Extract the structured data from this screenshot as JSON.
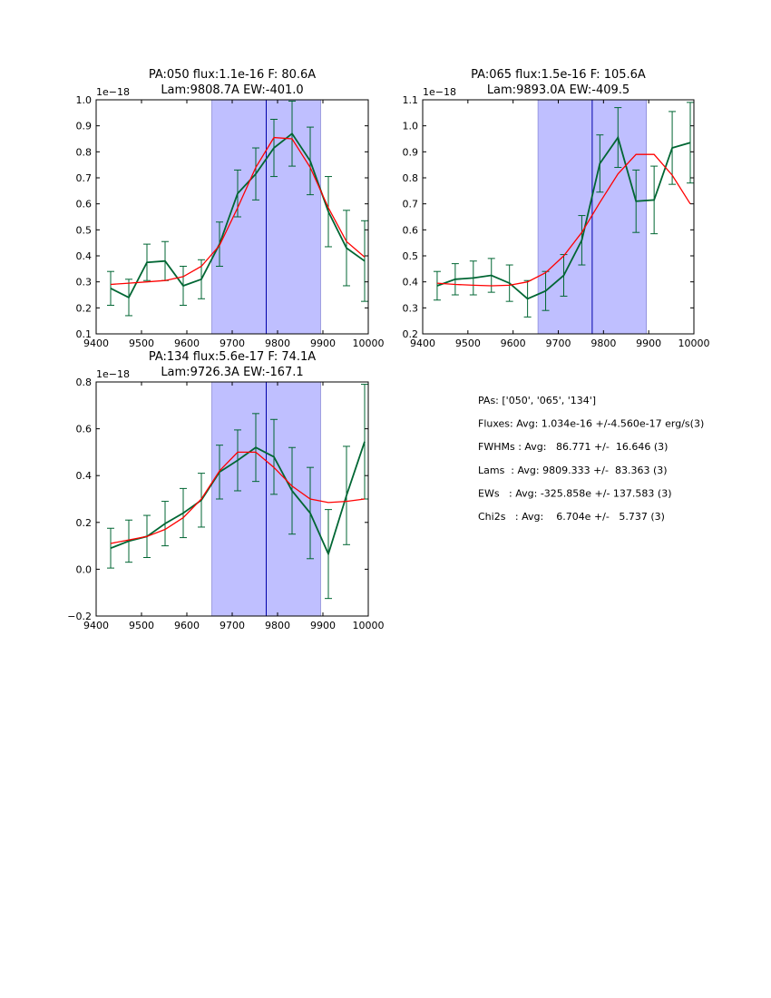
{
  "chart_data": [
    {
      "type": "line",
      "title_line1": "PA:050 flux:1.1e-16 F: 80.6A",
      "title_line2": "Lam:9808.7A EW:-401.0",
      "offset_label": "1e−18",
      "xlim": [
        9400,
        10000
      ],
      "ylim": [
        0.1,
        1.0
      ],
      "xticks": [
        9400,
        9500,
        9600,
        9700,
        9800,
        9900,
        10000
      ],
      "yticks": [
        0.1,
        0.2,
        0.3,
        0.4,
        0.5,
        0.6,
        0.7,
        0.8,
        0.9,
        1.0
      ],
      "ytick_labels": [
        "0.1",
        "0.2",
        "0.3",
        "0.4",
        "0.5",
        "0.6",
        "0.7",
        "0.8",
        "0.9",
        "1.0"
      ],
      "band": [
        9655,
        9895
      ],
      "center_line": 9775,
      "series": [
        {
          "name": "data",
          "color": "#006633",
          "x": [
            9432,
            9472,
            9512,
            9552,
            9592,
            9632,
            9672,
            9712,
            9752,
            9792,
            9832,
            9872,
            9912,
            9952,
            9992
          ],
          "values": [
            0.275,
            0.24,
            0.375,
            0.38,
            0.285,
            0.31,
            0.445,
            0.64,
            0.715,
            0.815,
            0.87,
            0.765,
            0.57,
            0.43,
            0.38
          ],
          "err": [
            0.065,
            0.07,
            0.07,
            0.075,
            0.075,
            0.075,
            0.085,
            0.09,
            0.1,
            0.11,
            0.125,
            0.13,
            0.135,
            0.145,
            0.155
          ]
        },
        {
          "name": "fit",
          "color": "#ff0000",
          "x": [
            9432,
            9472,
            9512,
            9552,
            9592,
            9632,
            9672,
            9712,
            9752,
            9792,
            9832,
            9872,
            9912,
            9952,
            9992
          ],
          "values": [
            0.29,
            0.295,
            0.3,
            0.305,
            0.32,
            0.36,
            0.44,
            0.585,
            0.74,
            0.855,
            0.85,
            0.74,
            0.585,
            0.455,
            0.395
          ]
        }
      ]
    },
    {
      "type": "line",
      "title_line1": "PA:065 flux:1.5e-16 F: 105.6A",
      "title_line2": "Lam:9893.0A EW:-409.5",
      "offset_label": "1e−18",
      "xlim": [
        9400,
        10000
      ],
      "ylim": [
        0.2,
        1.1
      ],
      "xticks": [
        9400,
        9500,
        9600,
        9700,
        9800,
        9900,
        10000
      ],
      "yticks": [
        0.2,
        0.3,
        0.4,
        0.5,
        0.6,
        0.7,
        0.8,
        0.9,
        1.0,
        1.1
      ],
      "ytick_labels": [
        "0.2",
        "0.3",
        "0.4",
        "0.5",
        "0.6",
        "0.7",
        "0.8",
        "0.9",
        "1.0",
        "1.1"
      ],
      "band": [
        9655,
        9895
      ],
      "center_line": 9775,
      "series": [
        {
          "name": "data",
          "color": "#006633",
          "x": [
            9432,
            9472,
            9512,
            9552,
            9592,
            9632,
            9672,
            9712,
            9752,
            9792,
            9832,
            9872,
            9912,
            9952,
            9992
          ],
          "values": [
            0.385,
            0.41,
            0.415,
            0.425,
            0.395,
            0.335,
            0.365,
            0.425,
            0.56,
            0.855,
            0.955,
            0.71,
            0.715,
            0.915,
            0.935
          ],
          "err": [
            0.055,
            0.06,
            0.065,
            0.065,
            0.07,
            0.07,
            0.075,
            0.08,
            0.095,
            0.11,
            0.115,
            0.12,
            0.13,
            0.14,
            0.155
          ]
        },
        {
          "name": "fit",
          "color": "#ff0000",
          "x": [
            9432,
            9472,
            9512,
            9552,
            9592,
            9632,
            9672,
            9712,
            9752,
            9792,
            9832,
            9872,
            9912,
            9952,
            9992
          ],
          "values": [
            0.395,
            0.39,
            0.387,
            0.385,
            0.387,
            0.4,
            0.435,
            0.5,
            0.59,
            0.705,
            0.815,
            0.89,
            0.89,
            0.81,
            0.7
          ]
        }
      ]
    },
    {
      "type": "line",
      "title_line1": "PA:134 flux:5.6e-17 F: 74.1A",
      "title_line2": "Lam:9726.3A EW:-167.1",
      "offset_label": "1e−18",
      "xlim": [
        9400,
        10000
      ],
      "ylim": [
        -0.2,
        0.8
      ],
      "xticks": [
        9400,
        9500,
        9600,
        9700,
        9800,
        9900,
        10000
      ],
      "yticks": [
        -0.2,
        0.0,
        0.2,
        0.4,
        0.6,
        0.8
      ],
      "ytick_labels": [
        "−0.2",
        "0.0",
        "0.2",
        "0.4",
        "0.6",
        "0.8"
      ],
      "band": [
        9655,
        9895
      ],
      "center_line": 9775,
      "series": [
        {
          "name": "data",
          "color": "#006633",
          "x": [
            9432,
            9472,
            9512,
            9552,
            9592,
            9632,
            9672,
            9712,
            9752,
            9792,
            9832,
            9872,
            9912,
            9952,
            9992
          ],
          "values": [
            0.09,
            0.12,
            0.14,
            0.195,
            0.24,
            0.295,
            0.415,
            0.465,
            0.52,
            0.48,
            0.335,
            0.24,
            0.065,
            0.315,
            0.545
          ],
          "err": [
            0.085,
            0.09,
            0.09,
            0.095,
            0.105,
            0.115,
            0.115,
            0.13,
            0.145,
            0.16,
            0.185,
            0.195,
            0.19,
            0.21,
            0.245
          ]
        },
        {
          "name": "fit",
          "color": "#ff0000",
          "x": [
            9432,
            9472,
            9512,
            9552,
            9592,
            9632,
            9672,
            9712,
            9752,
            9792,
            9832,
            9872,
            9912,
            9952,
            9992
          ],
          "values": [
            0.11,
            0.125,
            0.14,
            0.17,
            0.22,
            0.3,
            0.42,
            0.5,
            0.5,
            0.435,
            0.355,
            0.3,
            0.285,
            0.29,
            0.3
          ]
        }
      ]
    }
  ],
  "summary": {
    "lines": [
      "PAs: ['050', '065', '134']",
      "Fluxes: Avg: 1.034e-16 +/-4.560e-17 erg/s(3)",
      "FWHMs : Avg:   86.771 +/-  16.646 (3)",
      "Lams  : Avg: 9809.333 +/-  83.363 (3)",
      "EWs   : Avg: -325.858e +/- 137.583 (3)",
      "Chi2s   : Avg:    6.704e +/-   5.737 (3)"
    ]
  }
}
